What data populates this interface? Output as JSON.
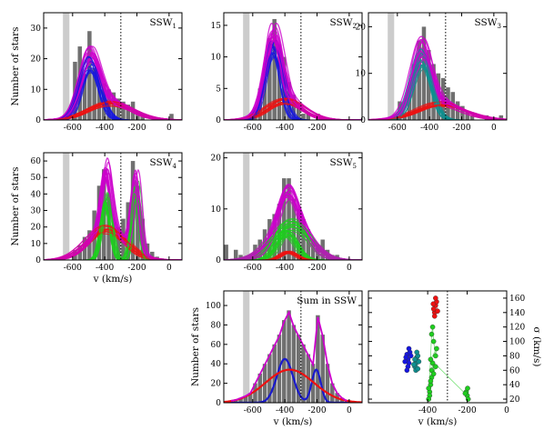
{
  "colors": {
    "bars": "#707070",
    "band": "#cccccc",
    "fit": "#cc00cc",
    "blue": "#1515e0",
    "red": "#ee1111",
    "teal": "#0d9090",
    "green": "#1ecf1e",
    "sum_blue": "#1a1acc"
  },
  "common": {
    "x_ticks": [
      -600,
      -400,
      -200,
      0
    ],
    "band_x": [
      -660,
      -620
    ],
    "dotted_x": -300,
    "xlabel": "v (km/s)",
    "ylabel": "Number of stars"
  },
  "chart_data": [
    {
      "id": "ssw1",
      "type": "bar",
      "title": "SSW",
      "title_sub": "1",
      "xlim": [
        -780,
        80
      ],
      "ylim": [
        0,
        35
      ],
      "yticks": [
        0,
        10,
        20,
        30
      ],
      "ylabel": "Number of stars",
      "xlabel": "",
      "x": [
        -675,
        -645,
        -615,
        -585,
        -555,
        -525,
        -495,
        -465,
        -435,
        -405,
        -375,
        -345,
        -315,
        -285,
        -255,
        -225,
        -195,
        -165,
        -135,
        -105,
        -75,
        -45,
        -15,
        15
      ],
      "values": [
        0,
        0,
        0,
        19,
        24,
        15,
        29,
        17,
        15,
        12,
        10,
        9,
        7,
        6,
        5,
        6,
        3,
        2,
        0,
        0,
        0,
        0,
        0,
        2
      ],
      "components": [
        {
          "color": "blue",
          "mu": -490,
          "sigma": 60,
          "amp": 18
        },
        {
          "color": "red",
          "mu": -360,
          "sigma": 130,
          "amp": 5.5
        }
      ]
    },
    {
      "id": "ssw2",
      "type": "bar",
      "title": "SSW",
      "title_sub": "2",
      "xlim": [
        -780,
        80
      ],
      "ylim": [
        0,
        17
      ],
      "yticks": [
        0,
        5,
        10,
        15
      ],
      "ylabel": "",
      "xlabel": "",
      "x": [
        -675,
        -645,
        -615,
        -585,
        -555,
        -525,
        -495,
        -465,
        -435,
        -405,
        -375,
        -345,
        -315,
        -285,
        -255,
        -225,
        -195
      ],
      "values": [
        0,
        0,
        0,
        2,
        5,
        8,
        13,
        16,
        12,
        10,
        6,
        4,
        2,
        1,
        1,
        0,
        1
      ],
      "components": [
        {
          "color": "blue",
          "mu": -470,
          "sigma": 50,
          "amp": 12
        },
        {
          "color": "red",
          "mu": -400,
          "sigma": 110,
          "amp": 3
        }
      ]
    },
    {
      "id": "ssw3",
      "type": "bar",
      "title": "SSW",
      "title_sub": "3",
      "xlim": [
        -780,
        80
      ],
      "ylim": [
        0,
        23
      ],
      "yticks": [
        0,
        10,
        20
      ],
      "ylabel": "",
      "xlabel": "",
      "x": [
        -675,
        -645,
        -615,
        -585,
        -555,
        -525,
        -495,
        -465,
        -435,
        -405,
        -375,
        -345,
        -315,
        -285,
        -255,
        -225,
        -195,
        -165,
        -135,
        -105,
        -75,
        -45,
        -15,
        15,
        45
      ],
      "values": [
        0,
        0,
        0,
        4,
        1,
        6,
        12,
        17,
        20,
        15,
        12,
        10,
        9,
        7,
        6,
        4,
        3,
        2,
        1,
        0,
        0,
        1,
        0,
        0,
        1
      ],
      "components": [
        {
          "color": "teal",
          "mu": -450,
          "sigma": 60,
          "amp": 13
        },
        {
          "color": "red",
          "mu": -330,
          "sigma": 150,
          "amp": 3.5
        }
      ]
    },
    {
      "id": "ssw4",
      "type": "bar",
      "title": "SSW",
      "title_sub": "4",
      "xlim": [
        -780,
        80
      ],
      "ylim": [
        0,
        65
      ],
      "yticks": [
        0,
        10,
        20,
        30,
        40,
        50,
        60
      ],
      "ylabel": "Number of stars",
      "xlabel": "v (km/s)",
      "x": [
        -675,
        -645,
        -615,
        -585,
        -555,
        -525,
        -495,
        -465,
        -435,
        -405,
        -375,
        -345,
        -315,
        -285,
        -255,
        -225,
        -195,
        -165,
        -135,
        -105,
        -75,
        -45,
        -15
      ],
      "values": [
        0,
        0,
        0,
        6,
        9,
        14,
        18,
        30,
        45,
        55,
        40,
        25,
        20,
        25,
        35,
        60,
        45,
        25,
        10,
        5,
        2,
        1,
        0
      ],
      "components": [
        {
          "color": "green",
          "mu": -390,
          "sigma": 30,
          "amp": 35
        },
        {
          "color": "green",
          "mu": -205,
          "sigma": 25,
          "amp": 42
        },
        {
          "color": "red",
          "mu": -390,
          "sigma": 110,
          "amp": 18
        }
      ]
    },
    {
      "id": "ssw5",
      "type": "bar",
      "title": "SSW",
      "title_sub": "5",
      "xlim": [
        -780,
        80
      ],
      "ylim": [
        0,
        21
      ],
      "yticks": [
        0,
        10,
        20
      ],
      "ylabel": "",
      "xlabel": "",
      "x": [
        -765,
        -735,
        -705,
        -675,
        -645,
        -615,
        -585,
        -555,
        -525,
        -495,
        -465,
        -435,
        -405,
        -375,
        -345,
        -315,
        -285,
        -255,
        -225,
        -195,
        -165,
        -135,
        -105,
        -75,
        -45,
        -15
      ],
      "values": [
        3,
        0,
        2,
        1,
        0,
        0,
        3,
        4,
        6,
        8,
        9,
        11,
        16,
        16,
        12,
        10,
        8,
        6,
        4,
        3,
        4,
        2,
        1,
        1,
        0,
        0
      ],
      "components": [
        {
          "color": "green",
          "mu": -385,
          "sigma": 60,
          "amp": 5
        },
        {
          "color": "green",
          "mu": -360,
          "sigma": 110,
          "amp": 7
        },
        {
          "color": "red",
          "mu": -380,
          "sigma": 50,
          "amp": 1.5
        }
      ]
    },
    {
      "id": "sum",
      "type": "bar",
      "title": "Sum in SSW",
      "title_sub": "",
      "xlim": [
        -780,
        80
      ],
      "ylim": [
        0,
        115
      ],
      "yticks": [
        0,
        20,
        40,
        60,
        80,
        100
      ],
      "ylabel": "Number of stars",
      "xlabel": "v (km/s)",
      "x": [
        -735,
        -705,
        -675,
        -645,
        -615,
        -585,
        -555,
        -525,
        -495,
        -465,
        -435,
        -405,
        -375,
        -345,
        -315,
        -285,
        -255,
        -225,
        -195,
        -165,
        -135,
        -105,
        -75,
        -45,
        -15
      ],
      "values": [
        2,
        3,
        5,
        7,
        10,
        20,
        30,
        40,
        50,
        60,
        70,
        85,
        95,
        80,
        70,
        60,
        50,
        40,
        90,
        70,
        40,
        20,
        10,
        5,
        2
      ],
      "sum_curves": [
        {
          "color": "sum_blue",
          "peaks": [
            {
              "mu": -400,
              "sigma": 50,
              "amp": 45
            },
            {
              "mu": -205,
              "sigma": 28,
              "amp": 34
            }
          ]
        },
        {
          "color": "red",
          "peaks": [
            {
              "mu": -370,
              "sigma": 150,
              "amp": 34
            }
          ]
        }
      ]
    },
    {
      "id": "sigma",
      "type": "scatter",
      "xlim": [
        -700,
        0
      ],
      "ylim": [
        15,
        170
      ],
      "xticks": [
        -400,
        -200,
        0
      ],
      "yticks": [
        20,
        40,
        60,
        80,
        100,
        120,
        140,
        160
      ],
      "xlabel": "v (km/s)",
      "ylabel": "σ (km/s)",
      "series": [
        {
          "color": "blue",
          "points": [
            [
              -500,
              75
            ],
            [
              -505,
              82
            ],
            [
              -495,
              70
            ],
            [
              -510,
              78
            ],
            [
              -490,
              85
            ],
            [
              -500,
              65
            ],
            [
              -485,
              80
            ],
            [
              -515,
              72
            ],
            [
              -495,
              90
            ],
            [
              -505,
              60
            ]
          ]
        },
        {
          "color": "teal",
          "points": [
            [
              -460,
              70
            ],
            [
              -455,
              78
            ],
            [
              -465,
              65
            ],
            [
              -450,
              80
            ],
            [
              -460,
              60
            ],
            [
              -445,
              72
            ],
            [
              -470,
              68
            ],
            [
              -455,
              85
            ],
            [
              -450,
              62
            ],
            [
              -465,
              75
            ]
          ]
        },
        {
          "color": "red",
          "points": [
            [
              -365,
              140
            ],
            [
              -360,
              150
            ],
            [
              -370,
              145
            ],
            [
              -355,
              155
            ],
            [
              -365,
              135
            ],
            [
              -360,
              160
            ],
            [
              -350,
              142
            ],
            [
              -372,
              152
            ]
          ]
        },
        {
          "color": "green",
          "points": [
            [
              -390,
              30
            ],
            [
              -385,
              40
            ],
            [
              -395,
              35
            ],
            [
              -380,
              50
            ],
            [
              -390,
              25
            ],
            [
              -380,
              60
            ],
            [
              -375,
              70
            ],
            [
              -370,
              55
            ],
            [
              -360,
              65
            ],
            [
              -385,
              45
            ],
            [
              -395,
              20
            ],
            [
              -380,
              110
            ],
            [
              -375,
              120
            ],
            [
              -370,
              100
            ],
            [
              -360,
              80
            ],
            [
              -355,
              90
            ],
            [
              -385,
              75
            ],
            [
              -200,
              25
            ],
            [
              -205,
              30
            ],
            [
              -195,
              20
            ],
            [
              -210,
              28
            ],
            [
              -198,
              35
            ]
          ]
        }
      ]
    }
  ]
}
